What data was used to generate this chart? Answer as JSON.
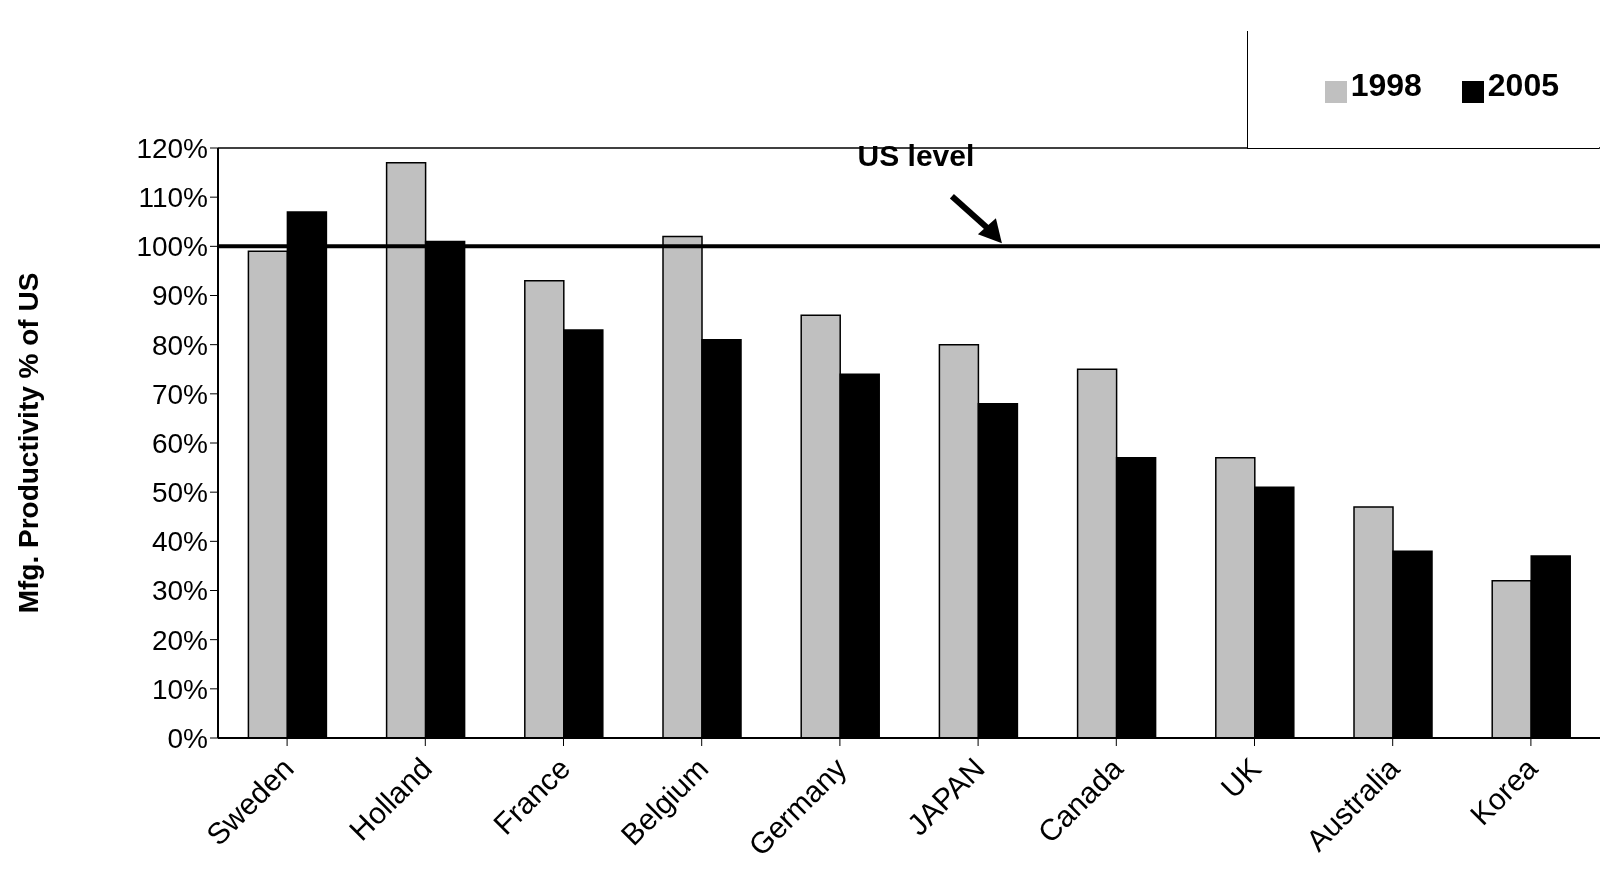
{
  "chart_data": {
    "type": "bar",
    "ylabel": "Mfg. Productivity % of US",
    "categories": [
      "Sweden",
      "Holland",
      "France",
      "Belgium",
      "Germany",
      "JAPAN",
      "Canada",
      "UK",
      "Australia",
      "Korea"
    ],
    "series": [
      {
        "name": "1998",
        "color": "#c0c0c0",
        "values": [
          99,
          117,
          93,
          102,
          86,
          80,
          75,
          57,
          47,
          32
        ]
      },
      {
        "name": "2005",
        "color": "#000000",
        "values": [
          107,
          101,
          83,
          81,
          74,
          68,
          57,
          51,
          38,
          37
        ]
      }
    ],
    "ylim": [
      0,
      120
    ],
    "yticks": [
      {
        "value": 0,
        "label": "0%"
      },
      {
        "value": 10,
        "label": "10%"
      },
      {
        "value": 20,
        "label": "20%"
      },
      {
        "value": 30,
        "label": "30%"
      },
      {
        "value": 40,
        "label": "40%"
      },
      {
        "value": 50,
        "label": "50%"
      },
      {
        "value": 60,
        "label": "60%"
      },
      {
        "value": 70,
        "label": "70%"
      },
      {
        "value": 80,
        "label": "80%"
      },
      {
        "value": 90,
        "label": "90%"
      },
      {
        "value": 100,
        "label": "100%"
      },
      {
        "value": 110,
        "label": "110%"
      },
      {
        "value": 120,
        "label": "120%"
      }
    ],
    "ref_lines": [
      {
        "axis": "y",
        "value": 100,
        "label": "US level",
        "color": "#000000"
      }
    ],
    "legend": "top right",
    "grid": false
  }
}
